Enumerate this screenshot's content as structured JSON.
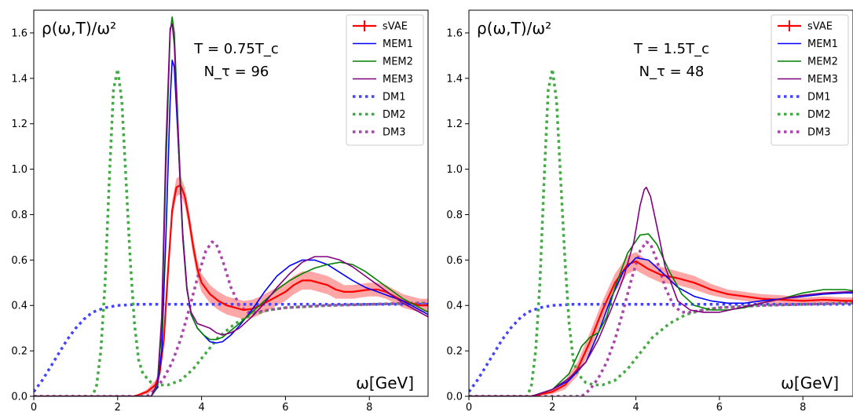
{
  "chart_data": [
    {
      "type": "line",
      "title": "",
      "ylabel": "ρ(ω,T)/ω²",
      "xlabel": "ω[GeV]",
      "xlim": [
        0,
        9.4
      ],
      "ylim": [
        0,
        1.7
      ],
      "x_ticks": [
        "0",
        "2",
        "4",
        "6",
        "8"
      ],
      "y_ticks": [
        "0.0",
        "0.2",
        "0.4",
        "0.6",
        "0.8",
        "1.0",
        "1.2",
        "1.4",
        "1.6"
      ],
      "annotations": [
        "T = 0.75T_c",
        "N_τ = 96"
      ],
      "legend_position": "top-right",
      "series": [
        {
          "name": "sVAE",
          "color": "#ff0000",
          "style": "solid-band",
          "x": [
            0,
            2.4,
            2.7,
            2.9,
            3.0,
            3.1,
            3.2,
            3.3,
            3.4,
            3.5,
            3.6,
            3.7,
            3.8,
            3.9,
            4.0,
            4.2,
            4.4,
            4.6,
            4.8,
            5.0,
            5.2,
            5.4,
            5.6,
            5.8,
            6.0,
            6.2,
            6.4,
            6.6,
            6.8,
            7.0,
            7.2,
            7.4,
            7.6,
            7.8,
            8.0,
            8.2,
            8.4,
            8.6,
            8.8,
            9.0,
            9.2,
            9.4
          ],
          "y": [
            0.0,
            0.0,
            0.02,
            0.05,
            0.1,
            0.25,
            0.55,
            0.82,
            0.92,
            0.93,
            0.88,
            0.78,
            0.66,
            0.56,
            0.5,
            0.45,
            0.42,
            0.4,
            0.39,
            0.38,
            0.385,
            0.4,
            0.42,
            0.44,
            0.46,
            0.49,
            0.51,
            0.51,
            0.5,
            0.49,
            0.47,
            0.46,
            0.46,
            0.465,
            0.47,
            0.47,
            0.46,
            0.44,
            0.42,
            0.41,
            0.4,
            0.4
          ],
          "band": [
            0,
            0,
            0.01,
            0.02,
            0.02,
            0.03,
            0.04,
            0.04,
            0.04,
            0.04,
            0.04,
            0.04,
            0.04,
            0.04,
            0.04,
            0.04,
            0.04,
            0.04,
            0.04,
            0.04,
            0.04,
            0.04,
            0.04,
            0.04,
            0.04,
            0.04,
            0.04,
            0.04,
            0.04,
            0.04,
            0.04,
            0.03,
            0.03,
            0.03,
            0.03,
            0.03,
            0.03,
            0.03,
            0.03,
            0.03,
            0.03,
            0.03
          ]
        },
        {
          "name": "MEM1",
          "color": "#0000ff",
          "style": "solid",
          "x": [
            0,
            2.8,
            2.95,
            3.05,
            3.15,
            3.25,
            3.3,
            3.35,
            3.45,
            3.55,
            3.65,
            3.75,
            3.9,
            4.05,
            4.2,
            4.35,
            4.5,
            4.7,
            4.9,
            5.2,
            5.5,
            5.8,
            6.1,
            6.4,
            6.7,
            7.0,
            7.3,
            7.6,
            7.9,
            8.2,
            8.5,
            8.8,
            9.1,
            9.4
          ],
          "y": [
            0.0,
            0.0,
            0.04,
            0.2,
            0.7,
            1.3,
            1.48,
            1.45,
            1.1,
            0.72,
            0.48,
            0.36,
            0.3,
            0.27,
            0.24,
            0.235,
            0.24,
            0.27,
            0.31,
            0.38,
            0.46,
            0.53,
            0.575,
            0.6,
            0.6,
            0.58,
            0.545,
            0.51,
            0.48,
            0.46,
            0.44,
            0.42,
            0.39,
            0.36
          ]
        },
        {
          "name": "MEM2",
          "color": "#008000",
          "style": "solid",
          "x": [
            0,
            2.8,
            2.95,
            3.05,
            3.15,
            3.25,
            3.3,
            3.35,
            3.45,
            3.55,
            3.65,
            3.75,
            3.9,
            4.05,
            4.2,
            4.35,
            4.5,
            4.7,
            4.9,
            5.2,
            5.5,
            5.8,
            6.1,
            6.4,
            6.7,
            7.0,
            7.3,
            7.6,
            7.9,
            8.2,
            8.5,
            8.8,
            9.1,
            9.4
          ],
          "y": [
            0.0,
            0.0,
            0.05,
            0.3,
            1.0,
            1.6,
            1.67,
            1.6,
            1.15,
            0.72,
            0.48,
            0.36,
            0.3,
            0.27,
            0.25,
            0.25,
            0.26,
            0.29,
            0.32,
            0.37,
            0.42,
            0.47,
            0.51,
            0.54,
            0.565,
            0.58,
            0.59,
            0.58,
            0.55,
            0.51,
            0.47,
            0.43,
            0.4,
            0.37
          ]
        },
        {
          "name": "MEM3",
          "color": "#800080",
          "style": "solid",
          "x": [
            0,
            2.8,
            2.95,
            3.05,
            3.15,
            3.25,
            3.3,
            3.35,
            3.45,
            3.55,
            3.65,
            3.75,
            3.9,
            4.05,
            4.2,
            4.35,
            4.5,
            4.7,
            4.9,
            5.2,
            5.5,
            5.8,
            6.1,
            6.4,
            6.7,
            7.0,
            7.3,
            7.6,
            7.9,
            8.2,
            8.5,
            8.8,
            9.1,
            9.4
          ],
          "y": [
            0.0,
            0.0,
            0.06,
            0.35,
            1.1,
            1.62,
            1.64,
            1.55,
            1.1,
            0.7,
            0.47,
            0.37,
            0.32,
            0.31,
            0.3,
            0.28,
            0.27,
            0.28,
            0.3,
            0.35,
            0.41,
            0.48,
            0.54,
            0.59,
            0.615,
            0.615,
            0.6,
            0.57,
            0.53,
            0.49,
            0.45,
            0.41,
            0.38,
            0.35
          ]
        },
        {
          "name": "DM1",
          "color": "#4444ff",
          "style": "dotted",
          "x": [
            0,
            0.2,
            0.4,
            0.6,
            0.8,
            1.0,
            1.2,
            1.4,
            1.7,
            2.0,
            2.5,
            3.0,
            4.0,
            5.0,
            6.0,
            7.0,
            8.0,
            9.0,
            9.4
          ],
          "y": [
            0.02,
            0.07,
            0.13,
            0.19,
            0.25,
            0.3,
            0.34,
            0.37,
            0.39,
            0.4,
            0.405,
            0.405,
            0.405,
            0.405,
            0.405,
            0.405,
            0.405,
            0.405,
            0.405
          ]
        },
        {
          "name": "DM2",
          "color": "#44aa44",
          "style": "dotted",
          "x": [
            0,
            1.4,
            1.5,
            1.6,
            1.7,
            1.8,
            1.9,
            2.0,
            2.1,
            2.2,
            2.3,
            2.4,
            2.5,
            2.6,
            2.8,
            3.0,
            3.2,
            3.5,
            3.8,
            4.1,
            4.4,
            4.8,
            5.2,
            5.6,
            6.0,
            7.0,
            8.0,
            9.0,
            9.4
          ],
          "y": [
            0.0,
            0.0,
            0.05,
            0.2,
            0.5,
            0.95,
            1.35,
            1.44,
            1.3,
            0.95,
            0.6,
            0.32,
            0.16,
            0.1,
            0.06,
            0.05,
            0.05,
            0.07,
            0.12,
            0.19,
            0.26,
            0.32,
            0.36,
            0.38,
            0.39,
            0.4,
            0.405,
            0.41,
            0.41
          ]
        },
        {
          "name": "DM3",
          "color": "#aa44aa",
          "style": "dotted",
          "x": [
            0,
            2.7,
            2.9,
            3.1,
            3.3,
            3.5,
            3.7,
            3.9,
            4.1,
            4.25,
            4.35,
            4.5,
            4.7,
            4.9,
            5.1,
            5.3,
            5.6,
            6.0,
            7.0,
            8.0,
            9.0,
            9.4
          ],
          "y": [
            0.0,
            0.0,
            0.03,
            0.08,
            0.15,
            0.25,
            0.38,
            0.52,
            0.64,
            0.68,
            0.67,
            0.6,
            0.48,
            0.4,
            0.37,
            0.37,
            0.38,
            0.39,
            0.4,
            0.405,
            0.41,
            0.41
          ]
        }
      ]
    },
    {
      "type": "line",
      "title": "",
      "ylabel": "ρ(ω,T)/ω²",
      "xlabel": "ω[GeV]",
      "xlim": [
        0,
        9.2
      ],
      "ylim": [
        0,
        1.7
      ],
      "x_ticks": [
        "0",
        "2",
        "4",
        "6",
        "8"
      ],
      "y_ticks": [
        "0.0",
        "0.2",
        "0.4",
        "0.6",
        "0.8",
        "1.0",
        "1.2",
        "1.4",
        "1.6"
      ],
      "annotations": [
        "T = 1.5T_c",
        "N_τ = 48"
      ],
      "legend_position": "top-right",
      "series": [
        {
          "name": "sVAE",
          "color": "#ff0000",
          "style": "solid-band",
          "x": [
            0,
            1.5,
            2.0,
            2.3,
            2.6,
            2.9,
            3.2,
            3.5,
            3.8,
            4.0,
            4.3,
            4.6,
            5.0,
            5.4,
            5.8,
            6.2,
            6.6,
            7.0,
            7.5,
            8.0,
            8.5,
            9.0,
            9.2
          ],
          "y": [
            0.0,
            0.0,
            0.02,
            0.05,
            0.12,
            0.24,
            0.38,
            0.5,
            0.58,
            0.595,
            0.56,
            0.535,
            0.52,
            0.5,
            0.47,
            0.45,
            0.44,
            0.43,
            0.425,
            0.42,
            0.425,
            0.42,
            0.42
          ],
          "band": [
            0,
            0,
            0.01,
            0.02,
            0.03,
            0.04,
            0.04,
            0.04,
            0.04,
            0.04,
            0.035,
            0.035,
            0.03,
            0.03,
            0.025,
            0.02,
            0.02,
            0.02,
            0.02,
            0.015,
            0.015,
            0.015,
            0.015
          ]
        },
        {
          "name": "MEM1",
          "color": "#0000ff",
          "style": "solid",
          "x": [
            0,
            1.5,
            2.0,
            2.4,
            2.8,
            3.1,
            3.4,
            3.7,
            4.0,
            4.3,
            4.6,
            5.0,
            5.4,
            5.8,
            6.2,
            6.6,
            7.0,
            7.5,
            8.0,
            8.5,
            9.0,
            9.2
          ],
          "y": [
            0.0,
            0.0,
            0.03,
            0.07,
            0.15,
            0.28,
            0.43,
            0.55,
            0.61,
            0.6,
            0.55,
            0.48,
            0.44,
            0.42,
            0.41,
            0.41,
            0.42,
            0.43,
            0.44,
            0.45,
            0.455,
            0.455
          ]
        },
        {
          "name": "MEM2",
          "color": "#008000",
          "style": "solid",
          "x": [
            0,
            1.5,
            2.0,
            2.4,
            2.7,
            2.9,
            3.1,
            3.3,
            3.5,
            3.8,
            4.1,
            4.3,
            4.5,
            4.8,
            5.1,
            5.4,
            5.8,
            6.2,
            6.6,
            7.0,
            7.5,
            8.0,
            8.5,
            9.0,
            9.2
          ],
          "y": [
            0.0,
            0.0,
            0.03,
            0.1,
            0.22,
            0.26,
            0.28,
            0.35,
            0.48,
            0.63,
            0.71,
            0.715,
            0.67,
            0.55,
            0.45,
            0.4,
            0.38,
            0.38,
            0.39,
            0.41,
            0.43,
            0.455,
            0.47,
            0.47,
            0.465
          ]
        },
        {
          "name": "MEM3",
          "color": "#800080",
          "style": "solid",
          "x": [
            0,
            1.5,
            2.0,
            2.4,
            2.8,
            3.1,
            3.4,
            3.7,
            3.95,
            4.1,
            4.2,
            4.25,
            4.35,
            4.5,
            4.7,
            5.0,
            5.3,
            5.6,
            6.0,
            6.5,
            7.0,
            7.5,
            8.0,
            8.5,
            9.0,
            9.2
          ],
          "y": [
            0.0,
            0.0,
            0.03,
            0.08,
            0.15,
            0.25,
            0.38,
            0.52,
            0.68,
            0.84,
            0.91,
            0.92,
            0.88,
            0.75,
            0.57,
            0.42,
            0.38,
            0.37,
            0.37,
            0.39,
            0.41,
            0.43,
            0.445,
            0.455,
            0.46,
            0.46
          ]
        },
        {
          "name": "DM1",
          "color": "#4444ff",
          "style": "dotted",
          "x": [
            0,
            0.2,
            0.4,
            0.6,
            0.8,
            1.0,
            1.2,
            1.4,
            1.7,
            2.0,
            2.5,
            3.0,
            4.0,
            5.0,
            6.0,
            7.0,
            8.0,
            9.0,
            9.2
          ],
          "y": [
            0.02,
            0.07,
            0.13,
            0.19,
            0.25,
            0.3,
            0.34,
            0.37,
            0.39,
            0.4,
            0.405,
            0.405,
            0.405,
            0.405,
            0.405,
            0.405,
            0.405,
            0.405,
            0.405
          ]
        },
        {
          "name": "DM2",
          "color": "#44aa44",
          "style": "dotted",
          "x": [
            0,
            1.4,
            1.5,
            1.6,
            1.7,
            1.8,
            1.9,
            2.0,
            2.1,
            2.2,
            2.3,
            2.4,
            2.5,
            2.6,
            2.8,
            3.0,
            3.2,
            3.5,
            3.8,
            4.1,
            4.4,
            4.8,
            5.2,
            5.6,
            6.0,
            7.0,
            8.0,
            9.0,
            9.2
          ],
          "y": [
            0.0,
            0.0,
            0.05,
            0.2,
            0.5,
            0.95,
            1.35,
            1.44,
            1.3,
            0.95,
            0.6,
            0.32,
            0.16,
            0.1,
            0.06,
            0.05,
            0.05,
            0.07,
            0.12,
            0.19,
            0.26,
            0.32,
            0.36,
            0.38,
            0.39,
            0.4,
            0.405,
            0.41,
            0.41
          ]
        },
        {
          "name": "DM3",
          "color": "#aa44aa",
          "style": "dotted",
          "x": [
            0,
            2.7,
            2.9,
            3.1,
            3.3,
            3.5,
            3.7,
            3.9,
            4.1,
            4.25,
            4.35,
            4.5,
            4.7,
            4.9,
            5.1,
            5.3,
            5.6,
            6.0,
            7.0,
            8.0,
            9.0,
            9.2
          ],
          "y": [
            0.0,
            0.0,
            0.03,
            0.08,
            0.15,
            0.25,
            0.38,
            0.52,
            0.64,
            0.68,
            0.67,
            0.6,
            0.48,
            0.4,
            0.37,
            0.37,
            0.38,
            0.39,
            0.4,
            0.405,
            0.41,
            0.41
          ]
        }
      ]
    }
  ]
}
